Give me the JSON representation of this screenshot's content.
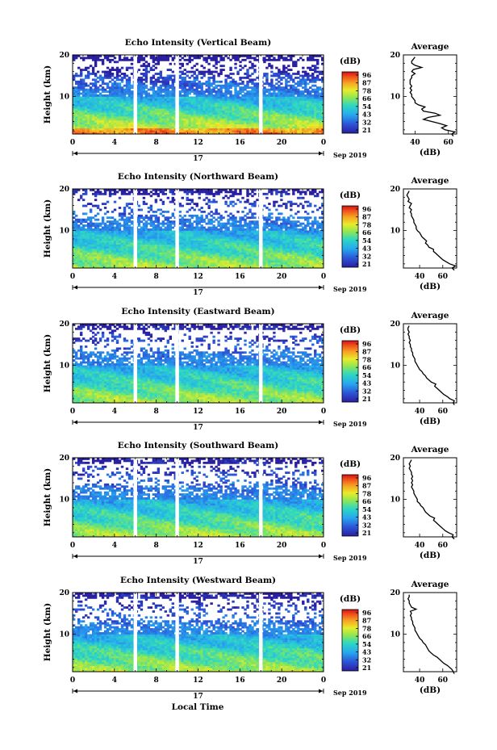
{
  "figure": {
    "xlabel": "Local Time",
    "day_label": "17",
    "month_label": "Sep 2019",
    "colorbar_title": "(dB)",
    "colorbar_ticks": [
      "96",
      "87",
      "78",
      "66",
      "54",
      "43",
      "32",
      "21"
    ],
    "avg_title": "Average",
    "avg_xlabel": "(dB)",
    "ylabel": "Height (km)",
    "x_ticks": [
      "0",
      "4",
      "8",
      "12",
      "16",
      "20",
      "0"
    ],
    "y_ticks": [
      "20",
      "10"
    ],
    "avg_x_ticks": [
      "40",
      "60"
    ]
  },
  "chart_data": [
    {
      "type": "heatmap",
      "title": "Echo Intensity (Vertical Beam)",
      "ylabel": "Height (km)",
      "xlabel": "",
      "colorbar_ticks": [
        "96",
        "87",
        "78",
        "66",
        "54",
        "43",
        "32",
        "21"
      ],
      "gaps": [
        6.0,
        10.0,
        18.0
      ],
      "avg": {
        "title": "Average",
        "xlabel": "(dB)",
        "x_ticks": [
          "40",
          "60"
        ],
        "xlim": [
          33,
          65
        ],
        "profile": [
          [
            0.5,
            63
          ],
          [
            1,
            62
          ],
          [
            1.5,
            64
          ],
          [
            2,
            58
          ],
          [
            2.5,
            56
          ],
          [
            3,
            59
          ],
          [
            3.5,
            55
          ],
          [
            4,
            50
          ],
          [
            4.5,
            45
          ],
          [
            5,
            48
          ],
          [
            5.5,
            55
          ],
          [
            6,
            52
          ],
          [
            6.5,
            45
          ],
          [
            7,
            44
          ],
          [
            7.5,
            46
          ],
          [
            8,
            42
          ],
          [
            8.5,
            40
          ],
          [
            9,
            40
          ],
          [
            9.5,
            39
          ],
          [
            10,
            38
          ],
          [
            10.5,
            38
          ],
          [
            11,
            37
          ],
          [
            11.5,
            38
          ],
          [
            12,
            37
          ],
          [
            12.5,
            38
          ],
          [
            13,
            37
          ],
          [
            13.5,
            37
          ],
          [
            14,
            37
          ],
          [
            14.5,
            38
          ],
          [
            15,
            38
          ],
          [
            15.5,
            40
          ],
          [
            16,
            38
          ],
          [
            16.5,
            39
          ],
          [
            17,
            44
          ],
          [
            17.5,
            40
          ],
          [
            18,
            38
          ],
          [
            18.5,
            38
          ],
          [
            19,
            39
          ],
          [
            19.5,
            40
          ]
        ]
      }
    },
    {
      "type": "heatmap",
      "title": "Echo Intensity (Northward Beam)",
      "ylabel": "Height (km)",
      "xlabel": "",
      "colorbar_ticks": [
        "96",
        "87",
        "78",
        "66",
        "54",
        "43",
        "32",
        "21"
      ],
      "gaps": [
        6.0,
        10.0,
        18.0
      ],
      "avg": {
        "title": "Average",
        "xlabel": "(dB)",
        "x_ticks": [
          "40",
          "60"
        ],
        "xlim": [
          26,
          72
        ],
        "profile": [
          [
            0.5,
            70
          ],
          [
            1,
            68
          ],
          [
            1.5,
            71
          ],
          [
            2,
            66
          ],
          [
            2.5,
            63
          ],
          [
            3,
            60
          ],
          [
            3.5,
            58
          ],
          [
            4,
            56
          ],
          [
            4.5,
            54
          ],
          [
            5,
            52
          ],
          [
            5.5,
            52
          ],
          [
            6,
            48
          ],
          [
            6.5,
            47
          ],
          [
            7,
            45
          ],
          [
            7.5,
            46
          ],
          [
            8,
            44
          ],
          [
            8.5,
            42
          ],
          [
            9,
            41
          ],
          [
            9.5,
            40
          ],
          [
            10,
            38
          ],
          [
            10.5,
            37
          ],
          [
            11,
            37
          ],
          [
            11.5,
            36
          ],
          [
            12,
            35
          ],
          [
            12.5,
            35
          ],
          [
            13,
            34
          ],
          [
            13.5,
            33
          ],
          [
            14,
            33
          ],
          [
            14.5,
            32
          ],
          [
            15,
            33
          ],
          [
            15.5,
            31
          ],
          [
            16,
            32
          ],
          [
            16.5,
            33
          ],
          [
            17,
            30
          ],
          [
            17.5,
            31
          ],
          [
            18,
            30
          ],
          [
            18.5,
            29
          ],
          [
            19,
            30
          ],
          [
            19.5,
            31
          ]
        ]
      }
    },
    {
      "type": "heatmap",
      "title": "Echo Intensity (Eastward Beam)",
      "ylabel": "Height (km)",
      "xlabel": "",
      "colorbar_ticks": [
        "96",
        "87",
        "78",
        "66",
        "54",
        "43",
        "32",
        "21"
      ],
      "gaps": [
        6.0,
        10.0,
        18.0
      ],
      "avg": {
        "title": "Average",
        "xlabel": "(dB)",
        "x_ticks": [
          "40",
          "60"
        ],
        "xlim": [
          26,
          72
        ],
        "profile": [
          [
            0.5,
            70
          ],
          [
            1,
            69
          ],
          [
            1.5,
            70
          ],
          [
            2,
            66
          ],
          [
            2.5,
            64
          ],
          [
            3,
            61
          ],
          [
            3.5,
            59
          ],
          [
            4,
            57
          ],
          [
            4.5,
            55
          ],
          [
            5,
            53
          ],
          [
            5.5,
            54
          ],
          [
            6,
            50
          ],
          [
            6.5,
            48
          ],
          [
            7,
            46
          ],
          [
            7.5,
            45
          ],
          [
            8,
            43
          ],
          [
            8.5,
            42
          ],
          [
            9,
            40
          ],
          [
            9.5,
            39
          ],
          [
            10,
            38
          ],
          [
            10.5,
            37
          ],
          [
            11,
            36
          ],
          [
            11.5,
            36
          ],
          [
            12,
            35
          ],
          [
            12.5,
            34
          ],
          [
            13,
            34
          ],
          [
            13.5,
            33
          ],
          [
            14,
            33
          ],
          [
            14.5,
            32
          ],
          [
            15,
            32
          ],
          [
            15.5,
            31
          ],
          [
            16,
            32
          ],
          [
            16.5,
            31
          ],
          [
            17,
            31
          ],
          [
            17.5,
            30
          ],
          [
            18,
            31
          ],
          [
            18.5,
            30
          ],
          [
            19,
            30
          ],
          [
            19.5,
            31
          ]
        ]
      }
    },
    {
      "type": "heatmap",
      "title": "Echo Intensity (Southward Beam)",
      "ylabel": "Height (km)",
      "xlabel": "",
      "colorbar_ticks": [
        "96",
        "87",
        "78",
        "66",
        "54",
        "43",
        "32",
        "21"
      ],
      "gaps": [
        6.0,
        10.0,
        18.0
      ],
      "avg": {
        "title": "Average",
        "xlabel": "(dB)",
        "x_ticks": [
          "40",
          "60"
        ],
        "xlim": [
          26,
          72
        ],
        "profile": [
          [
            0.5,
            70
          ],
          [
            1,
            68
          ],
          [
            1.5,
            69
          ],
          [
            2,
            65
          ],
          [
            2.5,
            62
          ],
          [
            3,
            60
          ],
          [
            3.5,
            58
          ],
          [
            4,
            56
          ],
          [
            4.5,
            54
          ],
          [
            5,
            52
          ],
          [
            5.5,
            53
          ],
          [
            6,
            49
          ],
          [
            6.5,
            47
          ],
          [
            7,
            45
          ],
          [
            7.5,
            44
          ],
          [
            8,
            43
          ],
          [
            8.5,
            41
          ],
          [
            9,
            40
          ],
          [
            9.5,
            38
          ],
          [
            10,
            38
          ],
          [
            10.5,
            37
          ],
          [
            11,
            36
          ],
          [
            11.5,
            35
          ],
          [
            12,
            35
          ],
          [
            12.5,
            34
          ],
          [
            13,
            33
          ],
          [
            13.5,
            34
          ],
          [
            14,
            33
          ],
          [
            14.5,
            34
          ],
          [
            15,
            33
          ],
          [
            15.5,
            34
          ],
          [
            16,
            33
          ],
          [
            16.5,
            33
          ],
          [
            17,
            32
          ],
          [
            17.5,
            31
          ],
          [
            18,
            32
          ],
          [
            18.5,
            31
          ],
          [
            19,
            32
          ],
          [
            19.5,
            33
          ]
        ]
      }
    },
    {
      "type": "heatmap",
      "title": "Echo Intensity (Westward Beam)",
      "ylabel": "Height (km)",
      "xlabel": "Local Time",
      "colorbar_ticks": [
        "96",
        "87",
        "78",
        "66",
        "54",
        "43",
        "32",
        "21"
      ],
      "gaps": [
        6.0,
        10.0,
        18.0
      ],
      "avg": {
        "title": "Average",
        "xlabel": "(dB)",
        "x_ticks": [
          "40",
          "60"
        ],
        "xlim": [
          26,
          72
        ],
        "profile": [
          [
            0.5,
            70
          ],
          [
            1,
            69
          ],
          [
            1.5,
            68
          ],
          [
            2,
            66
          ],
          [
            2.5,
            64
          ],
          [
            3,
            61
          ],
          [
            3.5,
            59
          ],
          [
            4,
            57
          ],
          [
            4.5,
            55
          ],
          [
            5,
            52
          ],
          [
            5.5,
            50
          ],
          [
            6,
            48
          ],
          [
            6.5,
            47
          ],
          [
            7,
            46
          ],
          [
            7.5,
            45
          ],
          [
            8,
            43
          ],
          [
            8.5,
            42
          ],
          [
            9,
            40
          ],
          [
            9.5,
            39
          ],
          [
            10,
            38
          ],
          [
            10.5,
            37
          ],
          [
            11,
            36
          ],
          [
            11.5,
            36
          ],
          [
            12,
            35
          ],
          [
            12.5,
            34
          ],
          [
            13,
            34
          ],
          [
            13.5,
            33
          ],
          [
            14,
            33
          ],
          [
            14.5,
            32
          ],
          [
            15,
            33
          ],
          [
            15.5,
            32
          ],
          [
            16,
            37
          ],
          [
            16.5,
            33
          ],
          [
            17,
            32
          ],
          [
            17.5,
            31
          ],
          [
            18,
            31
          ],
          [
            18.5,
            30
          ],
          [
            19,
            31
          ],
          [
            19.5,
            31
          ]
        ]
      }
    }
  ]
}
